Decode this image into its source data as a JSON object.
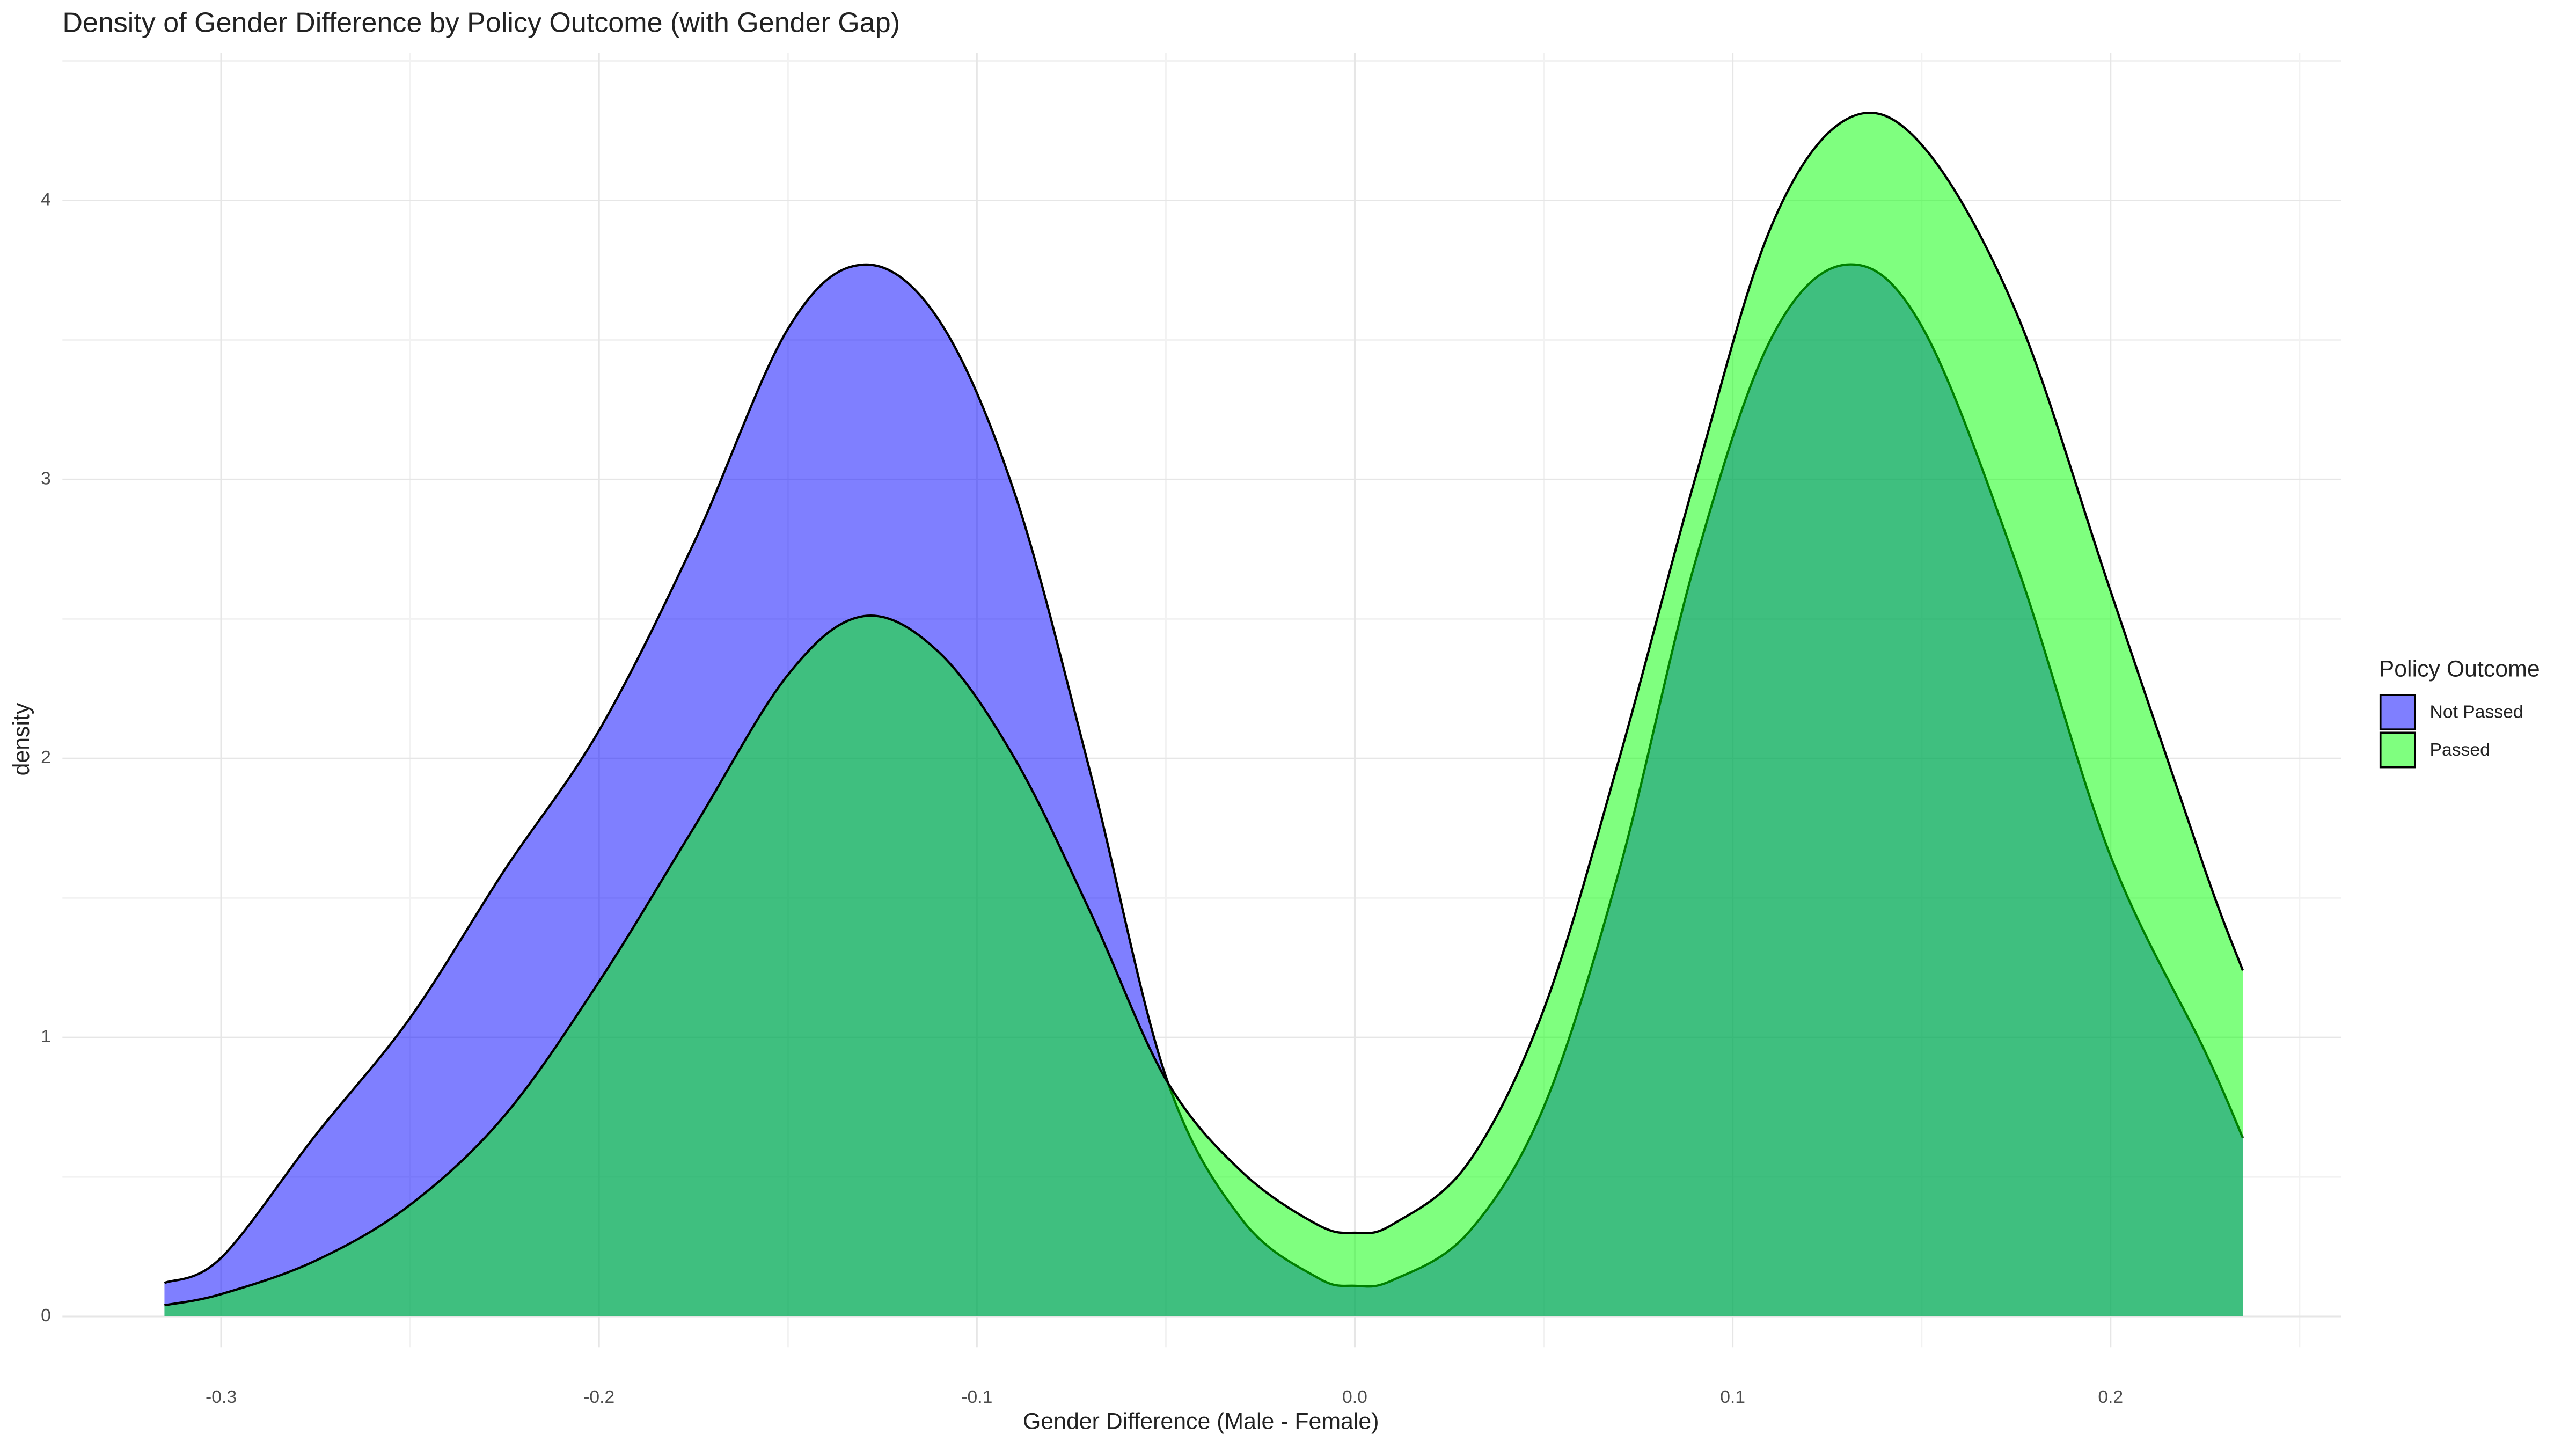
{
  "chart_data": {
    "type": "density",
    "title": "Density of Gender Difference by Policy Outcome (with Gender Gap)",
    "x_label": "Gender Difference (Male - Female)",
    "y_label": "density",
    "legend_title": "Policy Outcome",
    "legend_position": "right",
    "grid": true,
    "x": [
      -0.315,
      -0.3,
      -0.275,
      -0.25,
      -0.225,
      -0.2,
      -0.175,
      -0.15,
      -0.13,
      -0.11,
      -0.09,
      -0.07,
      -0.05,
      -0.03,
      -0.01,
      0,
      0.01,
      0.03,
      0.05,
      0.07,
      0.09,
      0.11,
      0.13,
      0.15,
      0.175,
      0.2,
      0.225,
      0.235
    ],
    "series": [
      {
        "name": "Not Passed",
        "color": "#0000ff",
        "values": [
          0.12,
          0.21,
          0.65,
          1.07,
          1.6,
          2.1,
          2.77,
          3.54,
          3.77,
          3.57,
          2.95,
          1.95,
          0.86,
          0.35,
          0.14,
          0.11,
          0.13,
          0.3,
          0.75,
          1.6,
          2.7,
          3.5,
          3.77,
          3.55,
          2.7,
          1.65,
          0.95,
          0.64
        ]
      },
      {
        "name": "Passed",
        "color": "#00ff00",
        "values": [
          0.04,
          0.08,
          0.2,
          0.4,
          0.72,
          1.2,
          1.75,
          2.3,
          2.51,
          2.38,
          2.0,
          1.45,
          0.85,
          0.52,
          0.33,
          0.3,
          0.33,
          0.55,
          1.1,
          2.0,
          3.0,
          3.9,
          4.29,
          4.2,
          3.6,
          2.6,
          1.6,
          1.24
        ]
      }
    ],
    "xlim": [
      -0.342,
      0.261
    ],
    "xticks": [
      -0.3,
      -0.2,
      -0.1,
      {
        "value": 0,
        "label": "0.0"
      },
      0.1,
      0.2
    ],
    "ylim": [
      -0.11,
      4.53
    ],
    "yticks": [
      0,
      1,
      2,
      3,
      4
    ]
  }
}
